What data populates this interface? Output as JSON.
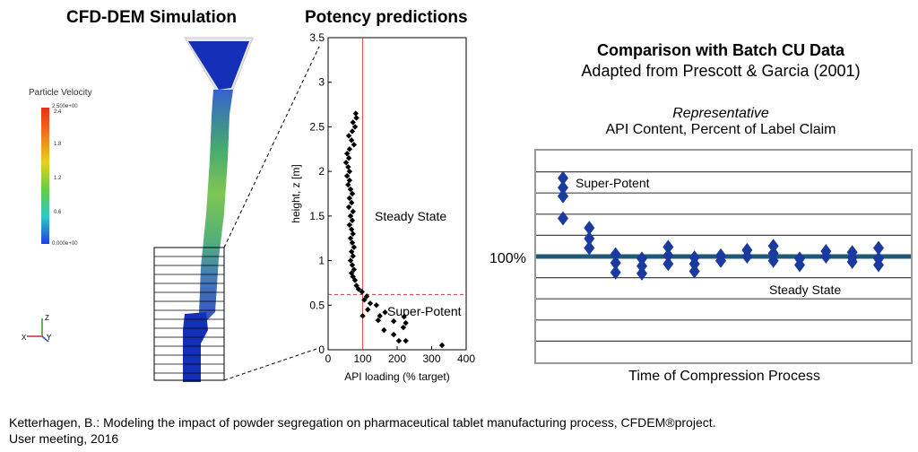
{
  "left_panel": {
    "title": "CFD-DEM Simulation",
    "colorbar_title": "Particle Velocity",
    "colorbar_ticks": [
      "2.500e+00",
      "2.4",
      "1.8",
      "1.2",
      "0.6",
      "0.000e+00"
    ],
    "axis_labels": {
      "z": "Z",
      "x": "X",
      "y": "Y"
    }
  },
  "middle_panel": {
    "title": "Potency predictions",
    "annotation_steady": "Steady State",
    "annotation_super": "Super-Potent"
  },
  "right_panel": {
    "title": "Comparison with Batch CU Data",
    "subtitle": "Adapted from Prescott & Garcia (2001)",
    "caption_line1": "Representative",
    "caption_line2": "API Content, Percent of Label Claim",
    "label_100": "100%",
    "label_super": "Super-Potent",
    "label_steady": "Steady State",
    "xlabel": "Time of Compression Process"
  },
  "citation": {
    "line1": "Ketterhagen, B.: Modeling the impact of powder segregation on pharmaceutical tablet manufacturing process, CFDEM®project.",
    "line2": "User meeting, 2016"
  },
  "colors": {
    "diamond_black": "#000000",
    "diamond_blue": "#1a3aa0",
    "reference_line": "#d04040",
    "hundred_line": "#1e5a78",
    "sim_blue": "#1530b8"
  },
  "chart_data": [
    {
      "type": "scatter",
      "xlabel": "API loading (% target)",
      "ylabel": "height, z [m]",
      "xlim": [
        0,
        400
      ],
      "ylim": [
        0,
        3.5
      ],
      "xticks": [
        0,
        100,
        200,
        300,
        400
      ],
      "yticks": [
        0,
        0.5,
        1,
        1.5,
        2,
        2.5,
        3,
        3.5
      ],
      "vertical_reference": 100,
      "horizontal_reference": 0.62,
      "points": [
        [
          330,
          0.05
        ],
        [
          225,
          0.1
        ],
        [
          205,
          0.1
        ],
        [
          190,
          0.17
        ],
        [
          162,
          0.22
        ],
        [
          218,
          0.25
        ],
        [
          225,
          0.3
        ],
        [
          190,
          0.32
        ],
        [
          145,
          0.33
        ],
        [
          220,
          0.37
        ],
        [
          150,
          0.38
        ],
        [
          100,
          0.38
        ],
        [
          165,
          0.42
        ],
        [
          115,
          0.45
        ],
        [
          140,
          0.5
        ],
        [
          122,
          0.52
        ],
        [
          105,
          0.56
        ],
        [
          112,
          0.6
        ],
        [
          98,
          0.65
        ],
        [
          88,
          0.68
        ],
        [
          82,
          0.72
        ],
        [
          78,
          0.78
        ],
        [
          72,
          0.82
        ],
        [
          68,
          0.86
        ],
        [
          75,
          0.9
        ],
        [
          70,
          0.95
        ],
        [
          65,
          1.0
        ],
        [
          72,
          1.05
        ],
        [
          68,
          1.1
        ],
        [
          75,
          1.15
        ],
        [
          70,
          1.2
        ],
        [
          65,
          1.25
        ],
        [
          72,
          1.3
        ],
        [
          68,
          1.35
        ],
        [
          62,
          1.4
        ],
        [
          70,
          1.45
        ],
        [
          65,
          1.5
        ],
        [
          72,
          1.55
        ],
        [
          60,
          1.6
        ],
        [
          68,
          1.65
        ],
        [
          62,
          1.7
        ],
        [
          70,
          1.75
        ],
        [
          65,
          1.8
        ],
        [
          58,
          1.85
        ],
        [
          62,
          1.9
        ],
        [
          55,
          1.95
        ],
        [
          62,
          2.0
        ],
        [
          58,
          2.05
        ],
        [
          52,
          2.1
        ],
        [
          60,
          2.15
        ],
        [
          55,
          2.2
        ],
        [
          62,
          2.25
        ],
        [
          75,
          2.3
        ],
        [
          68,
          2.35
        ],
        [
          60,
          2.4
        ],
        [
          70,
          2.45
        ],
        [
          78,
          2.5
        ],
        [
          72,
          2.55
        ],
        [
          82,
          2.6
        ],
        [
          80,
          2.65
        ]
      ]
    },
    {
      "type": "scatter",
      "title": "Comparison with Batch CU Data",
      "xlabel": "Time of Compression Process",
      "reference_label": "100%",
      "n_gridlines": 10,
      "columns": [
        [
          1.3,
          1.75,
          2.15,
          3.2
        ],
        [
          3.65,
          4.15,
          4.6
        ],
        [
          4.9,
          5.3,
          5.75
        ],
        [
          5.1,
          5.45,
          5.8
        ],
        [
          4.55,
          4.95,
          5.35
        ],
        [
          5.05,
          5.35,
          5.7
        ],
        [
          4.95,
          5.2
        ],
        [
          4.7,
          5.0
        ],
        [
          4.5,
          4.85,
          5.2
        ],
        [
          5.1,
          5.4
        ],
        [
          4.75,
          5.0
        ],
        [
          4.8,
          5.05,
          5.25
        ],
        [
          4.6,
          5.1,
          5.4
        ]
      ]
    }
  ]
}
